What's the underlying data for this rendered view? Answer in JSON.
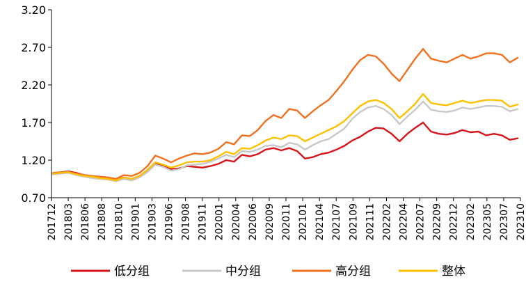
{
  "chart_data": {
    "type": "line",
    "title": "",
    "xlabel": "",
    "ylabel": "",
    "ylim": [
      0.7,
      3.2
    ],
    "yticks": [
      "3.20",
      "2.70",
      "2.20",
      "1.70",
      "1.20",
      "0.70"
    ],
    "ytick_values": [
      3.2,
      2.7,
      2.2,
      1.7,
      1.2,
      0.7
    ],
    "xticks": [
      "201712",
      "201803",
      "201806",
      "201808",
      "201810",
      "201901",
      "201903",
      "201906",
      "201908",
      "201911",
      "202001",
      "202004",
      "202006",
      "202009",
      "202011",
      "202101",
      "202104",
      "202107",
      "202109",
      "202111",
      "202202",
      "202204",
      "202207",
      "202209",
      "202212",
      "202302",
      "202305",
      "202307",
      "202310"
    ],
    "grid": false,
    "legend_position": "bottom",
    "x": [
      "201712",
      "201802",
      "201803",
      "201805",
      "201806",
      "201807",
      "201808",
      "201809",
      "201810",
      "201811",
      "201812",
      "201901",
      "201902",
      "201903",
      "201904",
      "201905",
      "201906",
      "201907",
      "201908",
      "201910",
      "201911",
      "201912",
      "202001",
      "202002",
      "202004",
      "202005",
      "202006",
      "202008",
      "202009",
      "202010",
      "202011",
      "202012",
      "202101",
      "202103",
      "202104",
      "202105",
      "202107",
      "202108",
      "202109",
      "202110",
      "202111",
      "202112",
      "202202",
      "202203",
      "202204",
      "202205",
      "202207",
      "202208",
      "202209",
      "202211",
      "202212",
      "202301",
      "202302",
      "202304",
      "202305",
      "202306",
      "202307",
      "202309",
      "202310",
      "202311"
    ],
    "series": [
      {
        "name": "低分组",
        "color": "#d7141a",
        "values": [
          1.02,
          1.04,
          1.05,
          1.03,
          1.0,
          0.99,
          0.97,
          0.96,
          0.93,
          0.97,
          0.95,
          0.99,
          1.06,
          1.15,
          1.12,
          1.08,
          1.09,
          1.12,
          1.11,
          1.1,
          1.12,
          1.15,
          1.2,
          1.18,
          1.27,
          1.25,
          1.28,
          1.34,
          1.36,
          1.33,
          1.36,
          1.32,
          1.22,
          1.24,
          1.28,
          1.3,
          1.34,
          1.39,
          1.46,
          1.51,
          1.58,
          1.63,
          1.62,
          1.55,
          1.45,
          1.55,
          1.63,
          1.7,
          1.58,
          1.55,
          1.54,
          1.56,
          1.6,
          1.57,
          1.58,
          1.53,
          1.55,
          1.53,
          1.47,
          1.49
        ]
      },
      {
        "name": "中分组",
        "color": "#c8c8c8",
        "values": [
          1.01,
          1.02,
          1.03,
          1.0,
          0.98,
          0.96,
          0.95,
          0.94,
          0.92,
          0.95,
          0.93,
          0.97,
          1.04,
          1.14,
          1.11,
          1.06,
          1.08,
          1.13,
          1.14,
          1.15,
          1.18,
          1.22,
          1.27,
          1.24,
          1.32,
          1.31,
          1.34,
          1.39,
          1.4,
          1.37,
          1.43,
          1.41,
          1.34,
          1.4,
          1.45,
          1.48,
          1.55,
          1.62,
          1.75,
          1.84,
          1.9,
          1.92,
          1.88,
          1.8,
          1.68,
          1.78,
          1.87,
          1.98,
          1.87,
          1.85,
          1.84,
          1.86,
          1.9,
          1.88,
          1.9,
          1.92,
          1.92,
          1.91,
          1.85,
          1.88
        ]
      },
      {
        "name": "高分组",
        "color": "#f07020",
        "values": [
          1.03,
          1.04,
          1.04,
          1.02,
          1.0,
          0.99,
          0.98,
          0.97,
          0.95,
          1.0,
          0.99,
          1.03,
          1.12,
          1.26,
          1.22,
          1.17,
          1.22,
          1.26,
          1.29,
          1.28,
          1.3,
          1.35,
          1.44,
          1.41,
          1.53,
          1.52,
          1.6,
          1.72,
          1.8,
          1.76,
          1.88,
          1.86,
          1.76,
          1.85,
          1.93,
          2.0,
          2.12,
          2.25,
          2.4,
          2.53,
          2.6,
          2.58,
          2.48,
          2.35,
          2.25,
          2.4,
          2.55,
          2.68,
          2.55,
          2.52,
          2.5,
          2.55,
          2.6,
          2.55,
          2.58,
          2.62,
          2.62,
          2.6,
          2.5,
          2.56
        ]
      },
      {
        "name": "整体",
        "color": "#ffc000",
        "values": [
          1.02,
          1.03,
          1.04,
          1.01,
          0.99,
          0.98,
          0.96,
          0.95,
          0.93,
          0.97,
          0.95,
          0.99,
          1.07,
          1.17,
          1.14,
          1.1,
          1.13,
          1.17,
          1.18,
          1.18,
          1.2,
          1.25,
          1.31,
          1.28,
          1.36,
          1.35,
          1.4,
          1.46,
          1.5,
          1.48,
          1.53,
          1.52,
          1.45,
          1.5,
          1.55,
          1.6,
          1.65,
          1.72,
          1.82,
          1.92,
          1.98,
          2.0,
          1.96,
          1.88,
          1.76,
          1.85,
          1.95,
          2.08,
          1.96,
          1.94,
          1.93,
          1.96,
          1.99,
          1.96,
          1.98,
          2.0,
          2.0,
          1.99,
          1.91,
          1.94
        ]
      }
    ]
  }
}
